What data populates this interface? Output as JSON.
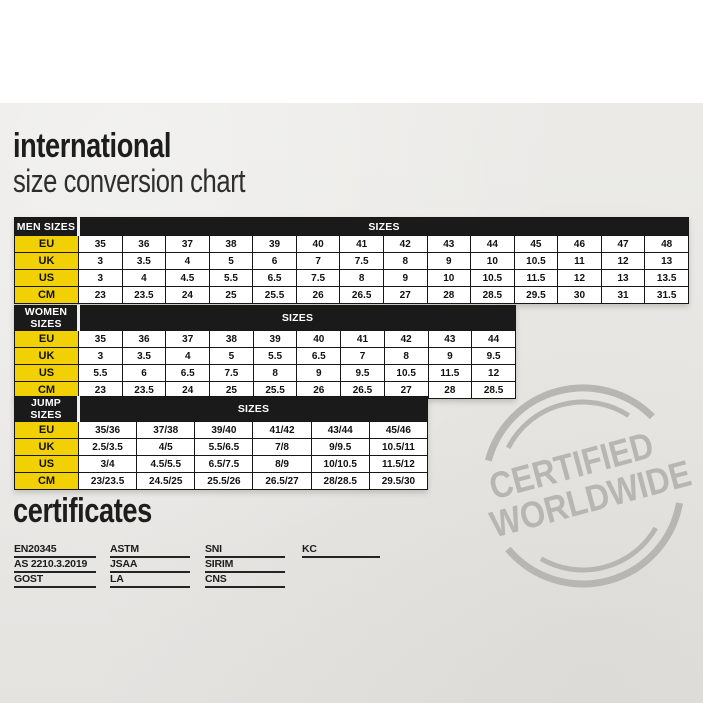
{
  "page": {
    "title_bold": "international",
    "title_sub": "size conversion chart",
    "certificates_title": "certificates"
  },
  "tables": [
    {
      "label": "MEN SIZES",
      "sizes_header": "SIZES",
      "rows": [
        {
          "label": "EU",
          "values": [
            "35",
            "36",
            "37",
            "38",
            "39",
            "40",
            "41",
            "42",
            "43",
            "44",
            "45",
            "46",
            "47",
            "48"
          ]
        },
        {
          "label": "UK",
          "values": [
            "3",
            "3.5",
            "4",
            "5",
            "6",
            "7",
            "7.5",
            "8",
            "9",
            "10",
            "10.5",
            "11",
            "12",
            "13"
          ]
        },
        {
          "label": "US",
          "values": [
            "3",
            "4",
            "4.5",
            "5.5",
            "6.5",
            "7.5",
            "8",
            "9",
            "10",
            "10.5",
            "11.5",
            "12",
            "13",
            "13.5"
          ]
        },
        {
          "label": "CM",
          "values": [
            "23",
            "23.5",
            "24",
            "25",
            "25.5",
            "26",
            "26.5",
            "27",
            "28",
            "28.5",
            "29.5",
            "30",
            "31",
            "31.5"
          ]
        }
      ]
    },
    {
      "label": "WOMEN SIZES",
      "sizes_header": "SIZES",
      "rows": [
        {
          "label": "EU",
          "values": [
            "35",
            "36",
            "37",
            "38",
            "39",
            "40",
            "41",
            "42",
            "43",
            "44"
          ]
        },
        {
          "label": "UK",
          "values": [
            "3",
            "3.5",
            "4",
            "5",
            "5.5",
            "6.5",
            "7",
            "8",
            "9",
            "9.5"
          ]
        },
        {
          "label": "US",
          "values": [
            "5.5",
            "6",
            "6.5",
            "7.5",
            "8",
            "9",
            "9.5",
            "10.5",
            "11.5",
            "12"
          ]
        },
        {
          "label": "CM",
          "values": [
            "23",
            "23.5",
            "24",
            "25",
            "25.5",
            "26",
            "26.5",
            "27",
            "28",
            "28.5"
          ]
        }
      ]
    },
    {
      "label": "JUMP SIZES",
      "sizes_header": "SIZES",
      "rows": [
        {
          "label": "EU",
          "values": [
            "35/36",
            "37/38",
            "39/40",
            "41/42",
            "43/44",
            "45/46"
          ]
        },
        {
          "label": "UK",
          "values": [
            "2.5/3.5",
            "4/5",
            "5.5/6.5",
            "7/8",
            "9/9.5",
            "10.5/11"
          ]
        },
        {
          "label": "US",
          "values": [
            "3/4",
            "4.5/5.5",
            "6.5/7.5",
            "8/9",
            "10/10.5",
            "11.5/12"
          ]
        },
        {
          "label": "CM",
          "values": [
            "23/23.5",
            "24.5/25",
            "25.5/26",
            "26.5/27",
            "28/28.5",
            "29.5/30"
          ]
        }
      ]
    }
  ],
  "certificates": {
    "columns": [
      [
        "EN20345",
        "AS 2210.3.2019",
        "GOST"
      ],
      [
        "ASTM",
        "JSAA",
        "LA"
      ],
      [
        "SNI",
        "SIRIM",
        "CNS"
      ],
      [
        "KC"
      ]
    ]
  },
  "stamp": {
    "line1": "CERTIFIED",
    "line2": "WORLDWIDE"
  },
  "colors": {
    "accent_yellow": "#f2d104",
    "table_black": "#1a1a1a",
    "paper_gray": "#e9e8e5",
    "stamp_gray": "#b8b6b3"
  }
}
